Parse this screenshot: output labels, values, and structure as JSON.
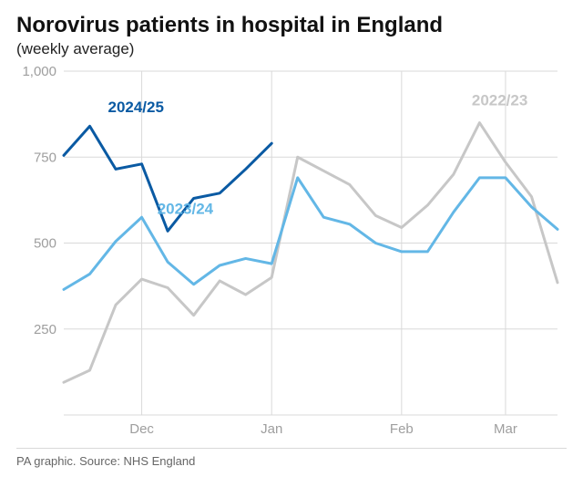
{
  "title": "Norovirus patients in hospital in England",
  "subtitle": "(weekly average)",
  "footer": "PA graphic. Source: NHS England",
  "chart": {
    "type": "line",
    "background_color": "#ffffff",
    "grid_color": "#d9d9d9",
    "axis_label_color": "#9e9e9e",
    "line_width": 3,
    "ylim": [
      0,
      1000
    ],
    "yticks": [
      250,
      500,
      750,
      1000
    ],
    "ytick_labels": [
      "250",
      "500",
      "750",
      "1,000"
    ],
    "xlim": [
      0,
      19
    ],
    "xticks": [
      3,
      8,
      13,
      17
    ],
    "xtick_labels": [
      "Dec",
      "Jan",
      "Feb",
      "Mar"
    ],
    "series": [
      {
        "name": "2022/23",
        "label": "2022/23",
        "color": "#c7c7c7",
        "label_x": 15.7,
        "label_y": 900,
        "points": [
          [
            0,
            95
          ],
          [
            1,
            130
          ],
          [
            2,
            320
          ],
          [
            3,
            395
          ],
          [
            4,
            370
          ],
          [
            5,
            290
          ],
          [
            6,
            390
          ],
          [
            7,
            350
          ],
          [
            8,
            400
          ],
          [
            9,
            750
          ],
          [
            10,
            710
          ],
          [
            11,
            670
          ],
          [
            12,
            580
          ],
          [
            13,
            545
          ],
          [
            14,
            610
          ],
          [
            15,
            700
          ],
          [
            16,
            850
          ],
          [
            17,
            735
          ],
          [
            18,
            635
          ],
          [
            19,
            385
          ]
        ]
      },
      {
        "name": "2023/24",
        "label": "2023/24",
        "color": "#63b7e6",
        "label_x": 3.6,
        "label_y": 585,
        "points": [
          [
            0,
            365
          ],
          [
            1,
            410
          ],
          [
            2,
            505
          ],
          [
            3,
            575
          ],
          [
            4,
            445
          ],
          [
            5,
            380
          ],
          [
            6,
            435
          ],
          [
            7,
            455
          ],
          [
            8,
            440
          ],
          [
            9,
            690
          ],
          [
            10,
            575
          ],
          [
            11,
            555
          ],
          [
            12,
            500
          ],
          [
            13,
            475
          ],
          [
            14,
            475
          ],
          [
            15,
            590
          ],
          [
            16,
            690
          ],
          [
            17,
            690
          ],
          [
            18,
            605
          ],
          [
            19,
            540
          ]
        ]
      },
      {
        "name": "2024/25",
        "label": "2024/25",
        "color": "#0a5aa3",
        "label_x": 1.7,
        "label_y": 880,
        "points": [
          [
            0,
            755
          ],
          [
            1,
            840
          ],
          [
            2,
            715
          ],
          [
            3,
            730
          ],
          [
            4,
            535
          ],
          [
            5,
            630
          ],
          [
            6,
            645
          ],
          [
            7,
            715
          ],
          [
            8,
            790
          ]
        ]
      }
    ]
  }
}
